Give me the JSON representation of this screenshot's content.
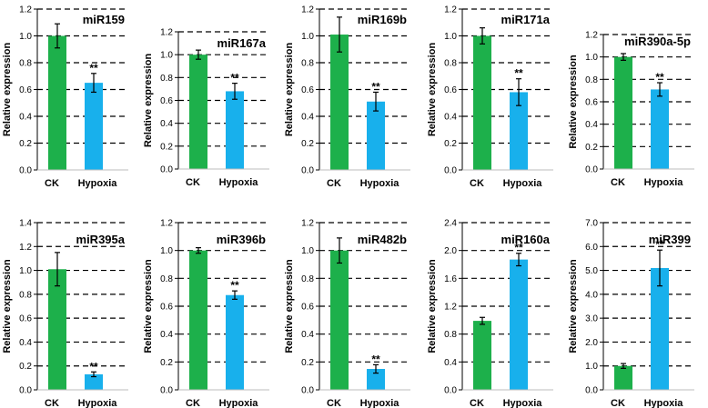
{
  "colors": {
    "ck": "#1db04b",
    "hypoxia": "#18b0ec",
    "axis": "#000000",
    "grid": "#000000"
  },
  "chart_data": [
    {
      "type": "bar",
      "title": "miR159",
      "ylabel": "Relative expression",
      "categories": [
        "CK",
        "Hypoxia"
      ],
      "values": [
        1.0,
        0.65
      ],
      "errors": [
        0.09,
        0.07
      ],
      "significance": [
        "",
        "**"
      ],
      "ylim": [
        0,
        1.2
      ],
      "yticks": [
        "0.0",
        "0.2",
        "0.4",
        "0.6",
        "0.8",
        "1.0",
        "1.2"
      ],
      "grid": true
    },
    {
      "type": "bar",
      "title": "miR167a",
      "ylabel": "Relative expression",
      "categories": [
        "CK",
        "Hypoxia"
      ],
      "values": [
        1.0,
        0.68
      ],
      "errors": [
        0.04,
        0.07
      ],
      "significance": [
        "",
        "**"
      ],
      "ylim": [
        0,
        1.2
      ],
      "yticks": [
        "0.0",
        "0.2",
        "0.4",
        "0.6",
        "0.8",
        "1.0",
        "1.2"
      ],
      "grid": true
    },
    {
      "type": "bar",
      "title": "miR169b",
      "ylabel": "Relative expression",
      "categories": [
        "CK",
        "Hypoxia"
      ],
      "values": [
        1.01,
        0.51
      ],
      "errors": [
        0.13,
        0.07
      ],
      "significance": [
        "",
        "**"
      ],
      "ylim": [
        0,
        1.2
      ],
      "yticks": [
        "0.0",
        "0.2",
        "0.4",
        "0.6",
        "0.8",
        "1.0",
        "1.2"
      ],
      "grid": true
    },
    {
      "type": "bar",
      "title": "miR171a",
      "ylabel": "Relative expression",
      "categories": [
        "CK",
        "Hypoxia"
      ],
      "values": [
        1.0,
        0.58
      ],
      "errors": [
        0.06,
        0.1
      ],
      "significance": [
        "",
        "**"
      ],
      "ylim": [
        0,
        1.2
      ],
      "yticks": [
        "0.0",
        "0.2",
        "0.4",
        "0.6",
        "0.8",
        "1.0",
        "1.2"
      ],
      "grid": true
    },
    {
      "type": "bar",
      "title": "miR390a-5p",
      "ylabel": "Relative expression",
      "categories": [
        "CK",
        "Hypoxia"
      ],
      "values": [
        1.0,
        0.71
      ],
      "errors": [
        0.03,
        0.06
      ],
      "significance": [
        "",
        "**"
      ],
      "ylim": [
        0,
        1.2
      ],
      "yticks": [
        "0.0",
        "0.2",
        "0.4",
        "0.6",
        "0.8",
        "1.0",
        "1.2"
      ],
      "grid": true
    },
    {
      "type": "bar",
      "title": "miR395a",
      "ylabel": "Relative expression",
      "categories": [
        "CK",
        "Hypoxia"
      ],
      "values": [
        1.01,
        0.13
      ],
      "errors": [
        0.14,
        0.02
      ],
      "significance": [
        "",
        "**"
      ],
      "ylim": [
        0,
        1.4
      ],
      "yticks": [
        "0.0",
        "0.2",
        "0.4",
        "0.6",
        "0.8",
        "1.0",
        "1.2",
        "1.4"
      ],
      "grid": true
    },
    {
      "type": "bar",
      "title": "miR396b",
      "ylabel": "Relative expression",
      "categories": [
        "CK",
        "Hypoxia"
      ],
      "values": [
        1.0,
        0.68
      ],
      "errors": [
        0.02,
        0.03
      ],
      "significance": [
        "",
        "**"
      ],
      "ylim": [
        0,
        1.2
      ],
      "yticks": [
        "0.0",
        "0.2",
        "0.4",
        "0.6",
        "0.8",
        "1.0",
        "1.2"
      ],
      "grid": true
    },
    {
      "type": "bar",
      "title": "miR482b",
      "ylabel": "Relative expression",
      "categories": [
        "CK",
        "Hypoxia"
      ],
      "values": [
        1.0,
        0.15
      ],
      "errors": [
        0.09,
        0.03
      ],
      "significance": [
        "",
        "**"
      ],
      "ylim": [
        0,
        1.2
      ],
      "yticks": [
        "0.0",
        "0.2",
        "0.4",
        "0.6",
        "0.8",
        "1.0",
        "1.2"
      ],
      "grid": true
    },
    {
      "type": "bar",
      "title": "miR160a",
      "ylabel": "Relative expression",
      "categories": [
        "CK",
        "Hypoxia"
      ],
      "values": [
        0.99,
        1.87
      ],
      "errors": [
        0.05,
        0.09
      ],
      "significance": [
        "",
        "**"
      ],
      "ylim": [
        0,
        2.4
      ],
      "yticks": [
        "0.0",
        "0.4",
        "0.8",
        "1.2",
        "1.6",
        "2.0",
        "2.4"
      ],
      "grid": true
    },
    {
      "type": "bar",
      "title": "miR399",
      "ylabel": "Relative expression",
      "categories": [
        "CK",
        "Hypoxia"
      ],
      "values": [
        1.0,
        5.1
      ],
      "errors": [
        0.1,
        0.75
      ],
      "significance": [
        "",
        "**"
      ],
      "ylim": [
        0,
        7.0
      ],
      "yticks": [
        "0.0",
        "1.0",
        "2.0",
        "3.0",
        "4.0",
        "5.0",
        "6.0",
        "7.0"
      ],
      "grid": true
    }
  ]
}
